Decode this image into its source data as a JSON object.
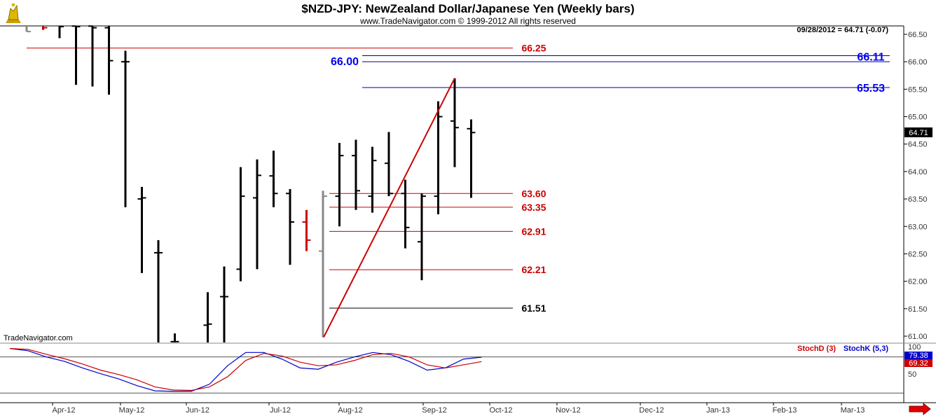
{
  "header": {
    "title": "$NZD-JPY:  NewZealand Dollar/Japanese Yen  (Weekly bars)",
    "copyright": "www.TradeNavigator.com © 1999-2012 All rights reserved",
    "last_quote": "09/28/2012 = 64.71 (-0.07)",
    "watermark": "TradeNavigator.com"
  },
  "colors": {
    "bar": "#000000",
    "support": "#cc0000",
    "resistance": "#00008b",
    "label_blue": "#0000ee",
    "trend": "#cc0000",
    "stochk": "#0000cc",
    "stochd": "#cc0000",
    "gray_bar": "#888888"
  },
  "chart_data": [
    {
      "type": "ohlc",
      "title": "$NZD-JPY:  NewZealand Dollar/Japanese Yen  (Weekly bars)",
      "ylim": [
        60.8,
        66.7
      ],
      "y_ticks": [
        "66.50",
        "66.00",
        "65.50",
        "65.00",
        "64.50",
        "64.00",
        "63.50",
        "63.00",
        "62.50",
        "62.00",
        "61.50",
        "61.00"
      ],
      "x_ticks": [
        "Apr-12",
        "May-12",
        "Jun-12",
        "Jul-12",
        "Aug-12",
        "Sep-12",
        "Oct-12",
        "Nov-12",
        "Dec-12",
        "Jan-13",
        "Feb-13",
        "Mar-13"
      ],
      "current_price": "64.71",
      "bars": [
        {
          "week": 1,
          "open": 66.8,
          "high": 66.9,
          "low": 66.55,
          "close": 66.55,
          "color": "gray"
        },
        {
          "week": 2,
          "open": 66.8,
          "high": 66.9,
          "low": 66.58,
          "close": 66.62,
          "color": "red"
        },
        {
          "week": 3,
          "open": 66.9,
          "high": 67.2,
          "low": 66.43,
          "close": 66.64,
          "color": "black"
        },
        {
          "week": 4,
          "open": 66.65,
          "high": 67.2,
          "low": 65.58,
          "close": 66.64,
          "color": "black"
        },
        {
          "week": 5,
          "open": 66.65,
          "high": 67.0,
          "low": 65.55,
          "close": 66.62,
          "color": "black"
        },
        {
          "week": 6,
          "open": 66.62,
          "high": 66.8,
          "low": 65.4,
          "close": 66.02,
          "color": "black"
        },
        {
          "week": 7,
          "open": 66.0,
          "high": 66.2,
          "low": 63.35,
          "close": 66.0,
          "color": "black"
        },
        {
          "week": 8,
          "open": 63.5,
          "high": 63.72,
          "low": 62.15,
          "close": 63.52,
          "color": "black"
        },
        {
          "week": 9,
          "open": 62.52,
          "high": 62.75,
          "low": 60.8,
          "close": 62.52,
          "color": "black"
        },
        {
          "week": 10,
          "open": 60.9,
          "high": 61.05,
          "low": 60.8,
          "close": 60.9,
          "color": "black"
        },
        {
          "week": 12,
          "open": 61.2,
          "high": 61.8,
          "low": 60.8,
          "close": 61.22,
          "color": "black"
        },
        {
          "week": 13,
          "open": 61.72,
          "high": 62.27,
          "low": 60.8,
          "close": 61.72,
          "color": "black"
        },
        {
          "week": 14,
          "open": 62.22,
          "high": 64.08,
          "low": 62.0,
          "close": 63.55,
          "color": "black"
        },
        {
          "week": 15,
          "open": 63.52,
          "high": 64.22,
          "low": 62.22,
          "close": 63.93,
          "color": "black"
        },
        {
          "week": 16,
          "open": 63.92,
          "high": 64.38,
          "low": 63.35,
          "close": 63.6,
          "color": "black"
        },
        {
          "week": 17,
          "open": 63.6,
          "high": 63.68,
          "low": 62.3,
          "close": 63.08,
          "color": "black"
        },
        {
          "week": 18,
          "open": 63.08,
          "high": 63.3,
          "low": 62.55,
          "close": 62.75,
          "color": "red"
        },
        {
          "week": 19,
          "open": 62.55,
          "high": 63.65,
          "low": 60.98,
          "close": 63.55,
          "color": "gray"
        },
        {
          "week": 20,
          "open": 63.55,
          "high": 64.52,
          "low": 63.0,
          "close": 64.29,
          "color": "black"
        },
        {
          "week": 21,
          "open": 64.29,
          "high": 64.58,
          "low": 63.3,
          "close": 63.65,
          "color": "black"
        },
        {
          "week": 22,
          "open": 63.55,
          "high": 64.45,
          "low": 63.25,
          "close": 64.2,
          "color": "black"
        },
        {
          "week": 23,
          "open": 64.15,
          "high": 64.72,
          "low": 63.55,
          "close": 63.6,
          "color": "black"
        },
        {
          "week": 24,
          "open": 63.6,
          "high": 63.85,
          "low": 62.6,
          "close": 62.98,
          "color": "black"
        },
        {
          "week": 25,
          "open": 62.72,
          "high": 63.6,
          "low": 62.02,
          "close": 63.55,
          "color": "black"
        },
        {
          "week": 26,
          "open": 63.55,
          "high": 65.28,
          "low": 63.22,
          "close": 65.0,
          "color": "black"
        },
        {
          "week": 27,
          "open": 64.92,
          "high": 65.7,
          "low": 64.08,
          "close": 64.8,
          "color": "black"
        },
        {
          "week": 28,
          "open": 64.78,
          "high": 64.95,
          "low": 63.52,
          "close": 64.71,
          "color": "black"
        }
      ],
      "levels": [
        {
          "value": 66.25,
          "label": "66.25",
          "color": "red"
        },
        {
          "value": 66.11,
          "label": "66.11",
          "color": "blue"
        },
        {
          "value": 66.0,
          "label": "66.00",
          "color": "blue"
        },
        {
          "value": 65.53,
          "label": "65.53",
          "color": "blue"
        },
        {
          "value": 63.6,
          "label": "63.60",
          "color": "red"
        },
        {
          "value": 63.35,
          "label": "63.35",
          "color": "red"
        },
        {
          "value": 62.91,
          "label": "62.91",
          "color": "red"
        },
        {
          "value": 62.21,
          "label": "62.21",
          "color": "red"
        },
        {
          "value": 61.51,
          "label": "61.51",
          "color": "black"
        }
      ],
      "trendline": {
        "from": {
          "week": 19,
          "price": 60.98
        },
        "to": {
          "week": 27,
          "price": 65.7
        }
      }
    },
    {
      "type": "line",
      "title": "Stochastic",
      "legend": [
        "StochD (3)",
        "StochK (5,3)"
      ],
      "y_ticks": [
        "100",
        "50"
      ],
      "ylim": [
        0,
        100
      ],
      "value_d": "69.32",
      "value_k": "79.38",
      "series": [
        {
          "name": "StochK (5,3)",
          "values": [
            99,
            94,
            80,
            70,
            55,
            42,
            30,
            15,
            3,
            2,
            2,
            18,
            60,
            90,
            90,
            75,
            55,
            52,
            68,
            80,
            90,
            85,
            70,
            50,
            55,
            75,
            79.38
          ]
        },
        {
          "name": "StochD (3)",
          "values": [
            99,
            97,
            86,
            76,
            64,
            50,
            40,
            28,
            12,
            5,
            4,
            12,
            35,
            72,
            88,
            82,
            68,
            60,
            62,
            72,
            85,
            88,
            80,
            62,
            55,
            62,
            69.32
          ]
        }
      ]
    }
  ]
}
